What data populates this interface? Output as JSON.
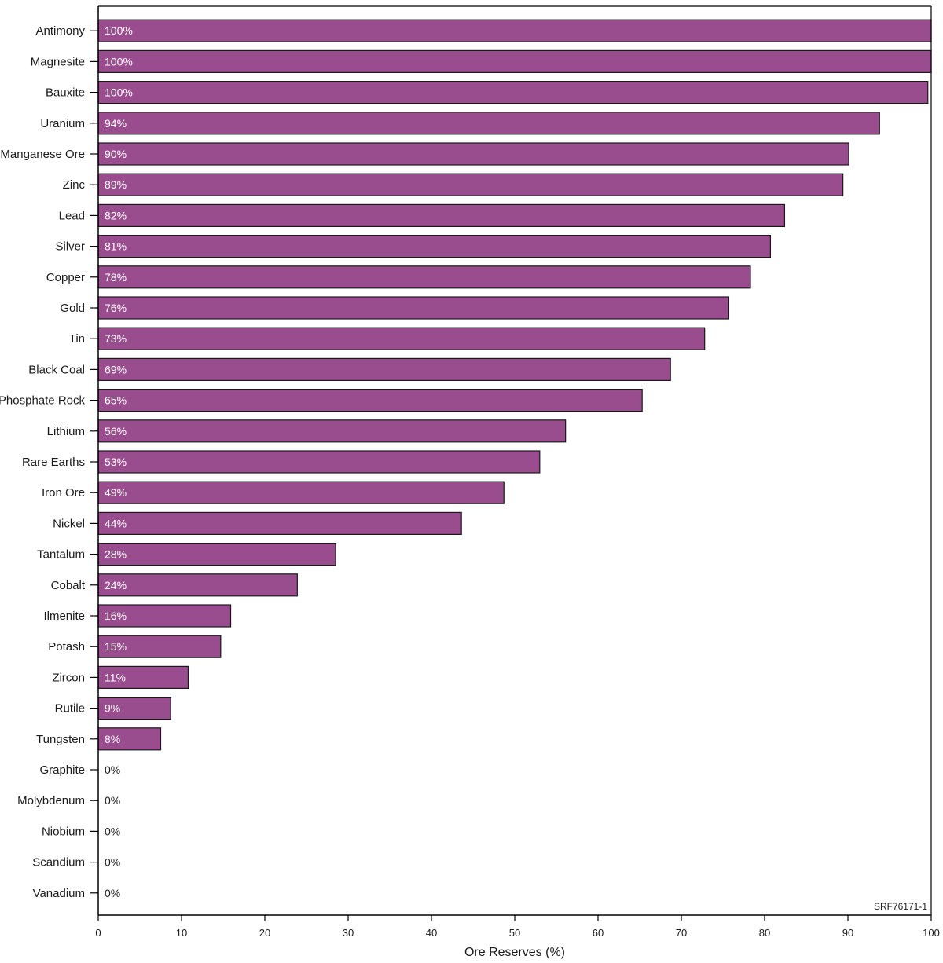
{
  "chart_data": {
    "type": "bar",
    "orientation": "horizontal",
    "categories": [
      "Antimony",
      "Magnesite",
      "Bauxite",
      "Uranium",
      "Manganese Ore",
      "Zinc",
      "Lead",
      "Silver",
      "Copper",
      "Gold",
      "Tin",
      "Black Coal",
      "Phosphate Rock",
      "Lithium",
      "Rare Earths",
      "Iron Ore",
      "Nickel",
      "Tantalum",
      "Cobalt",
      "Ilmenite",
      "Potash",
      "Zircon",
      "Rutile",
      "Tungsten",
      "Graphite",
      "Molybdenum",
      "Niobium",
      "Scandium",
      "Vanadium"
    ],
    "values": [
      100,
      100,
      99.6,
      93.8,
      90.1,
      89.4,
      82.4,
      80.7,
      78.3,
      75.7,
      72.8,
      68.7,
      65.3,
      56.1,
      53.0,
      48.7,
      43.6,
      28.5,
      23.9,
      15.9,
      14.7,
      10.8,
      8.7,
      7.5,
      0,
      0,
      0,
      0,
      0
    ],
    "data_labels": [
      "100%",
      "100%",
      "100%",
      "94%",
      "90%",
      "89%",
      "82%",
      "81%",
      "78%",
      "76%",
      "73%",
      "69%",
      "65%",
      "56%",
      "53%",
      "49%",
      "44%",
      "28%",
      "24%",
      "16%",
      "15%",
      "11%",
      "9%",
      "8%",
      "0%",
      "0%",
      "0%",
      "0%",
      "0%"
    ],
    "title": "",
    "xlabel": "Ore Reserves (%)",
    "ylabel": "",
    "xlim": [
      0,
      100
    ],
    "xticks": [
      0,
      10,
      20,
      30,
      40,
      50,
      60,
      70,
      80,
      90,
      100
    ],
    "xtick_labels": [
      "0",
      "10",
      "20",
      "30",
      "40",
      "50",
      "60",
      "70",
      "80",
      "90",
      "100"
    ],
    "grid": false,
    "legend": "none",
    "annotations": [
      "SRF76171-1"
    ],
    "colors": {
      "bar_fill": "#9a4d8e",
      "bar_stroke": "#1a1a1a",
      "label_inside": "#ffffff",
      "label_outside": "#1a1a1a",
      "axis": "#000000"
    }
  }
}
